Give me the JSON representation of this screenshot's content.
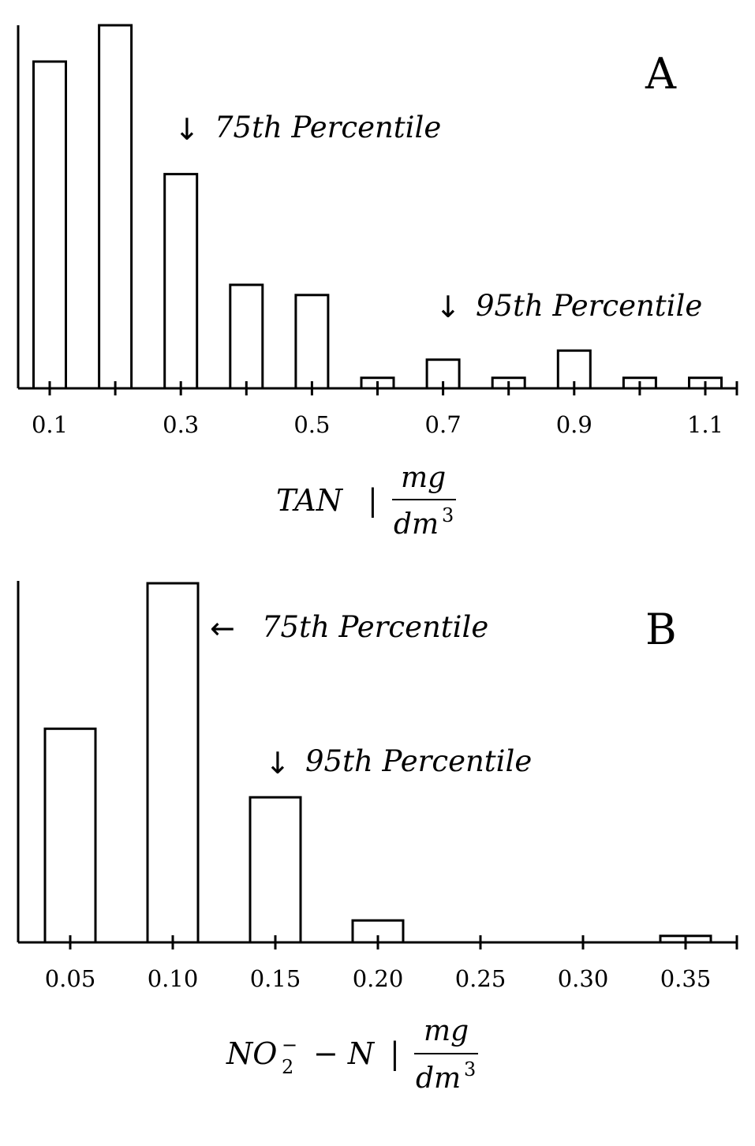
{
  "chart_data": [
    {
      "type": "bar",
      "panel_label": "A",
      "x": [
        0.1,
        0.2,
        0.3,
        0.4,
        0.5,
        0.6,
        0.7,
        0.8,
        0.9,
        1.0,
        1.1
      ],
      "values": [
        0.9,
        1.0,
        0.59,
        0.285,
        0.257,
        0.029,
        0.079,
        0.029,
        0.104,
        0.029,
        0.029
      ],
      "tick_labels": [
        "0.1",
        "0.3",
        "0.5",
        "0.7",
        "0.9",
        "1.1"
      ],
      "xlabel": {
        "variable": "TAN",
        "separator": "|",
        "unit_numerator": "mg",
        "unit_denominator": "dm",
        "unit_exponent": "3"
      },
      "annotations": [
        {
          "arrow": "↓",
          "text": "75th Percentile",
          "at_x": 0.3
        },
        {
          "arrow": "↓",
          "text": "95th Percentile",
          "at_x": 0.7
        }
      ],
      "yaxis_ticks": false
    },
    {
      "type": "bar",
      "panel_label": "B",
      "x": [
        0.05,
        0.1,
        0.15,
        0.2,
        0.25,
        0.3,
        0.35
      ],
      "values": [
        0.595,
        1.0,
        0.404,
        0.061,
        0,
        0,
        0.018
      ],
      "tick_labels": [
        "0.05",
        "0.10",
        "0.15",
        "0.20",
        "0.25",
        "0.30",
        "0.35"
      ],
      "xlabel": {
        "variable": "NO",
        "subscript": "2",
        "superscript": "−",
        "suffix": "− N",
        "separator": "|",
        "unit_numerator": "mg",
        "unit_denominator": "dm",
        "unit_exponent": "3"
      },
      "annotations": [
        {
          "arrow": "←",
          "text": "75th Percentile",
          "at_x": 0.1
        },
        {
          "arrow": "↓",
          "text": "95th Percentile",
          "at_x": 0.15
        }
      ],
      "yaxis_ticks": false
    }
  ]
}
